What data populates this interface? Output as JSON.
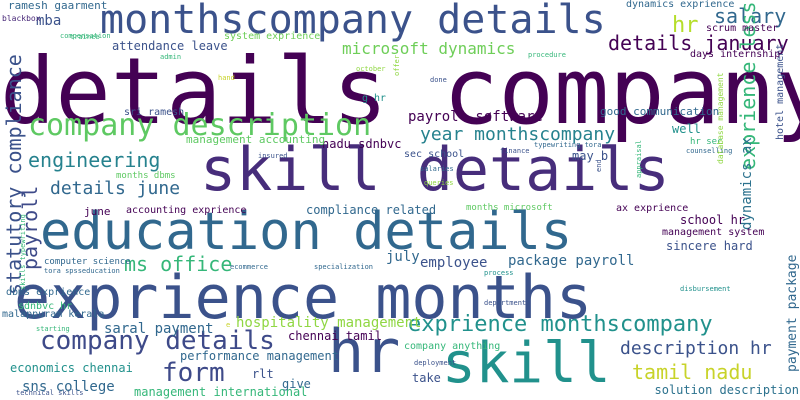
{
  "palette": {
    "dark_purple": "#440154",
    "indigo": "#3b528b",
    "slate": "#31688e",
    "teal": "#21918c",
    "green": "#35b779",
    "lime": "#90d743",
    "yellow": "#c8d32a"
  },
  "words": [
    {
      "text": "details company",
      "color": "#440154"
    },
    {
      "text": "exprience months",
      "color": "#3b528b"
    },
    {
      "text": "education details",
      "color": "#31688e"
    },
    {
      "text": "skill details",
      "color": "#472d7b"
    },
    {
      "text": "hr",
      "color": "#3b528b"
    },
    {
      "text": "skill",
      "color": "#21918c"
    },
    {
      "text": "monthscompany details",
      "color": "#3b528b"
    },
    {
      "text": "company description",
      "color": "#5ec962"
    },
    {
      "text": "company details",
      "color": "#3e4a89"
    },
    {
      "text": "exprience monthscompany",
      "color": "#21918c"
    },
    {
      "text": "details january",
      "color": "#440154"
    },
    {
      "text": "salary",
      "color": "#31688e"
    },
    {
      "text": "hr",
      "color": "#b5de2b"
    },
    {
      "text": "engineering",
      "color": "#26828e"
    },
    {
      "text": "form",
      "color": "#3e4a89"
    },
    {
      "text": "ms office",
      "color": "#35b779"
    },
    {
      "text": "tamil nadu",
      "color": "#c8d32a"
    },
    {
      "text": "description hr",
      "color": "#3b528b"
    },
    {
      "text": "year monthscompany",
      "color": "#26828e"
    },
    {
      "text": "microsoft dynamics",
      "color": "#6ece58"
    },
    {
      "text": "details june",
      "color": "#31688e"
    },
    {
      "text": "exprience less",
      "color": "#35b779"
    },
    {
      "text": "statutory compliance",
      "color": "#3b528b"
    },
    {
      "text": "payroll",
      "color": "#3e4a89"
    },
    {
      "text": "payment package",
      "color": "#31688e"
    },
    {
      "text": "dynamics ax",
      "color": "#2c728e"
    },
    {
      "text": "hospitality management",
      "color": "#90d743"
    },
    {
      "text": "payroll software",
      "color": "#440154"
    },
    {
      "text": "package payroll",
      "color": "#31688e"
    },
    {
      "text": "performance management",
      "color": "#31688e"
    },
    {
      "text": "attendance leave",
      "color": "#3b528b"
    },
    {
      "text": "compliance related",
      "color": "#31688e"
    },
    {
      "text": "saral payment",
      "color": "#31688e"
    },
    {
      "text": "chennai tamil",
      "color": "#440154"
    },
    {
      "text": "economics chennai",
      "color": "#21918c"
    },
    {
      "text": "sns college",
      "color": "#31688e"
    },
    {
      "text": "management international",
      "color": "#35b779"
    },
    {
      "text": "solution description",
      "color": "#2c728e"
    },
    {
      "text": "school hr",
      "color": "#440154"
    },
    {
      "text": "sincere hard",
      "color": "#3b528b"
    },
    {
      "text": "employee",
      "color": "#3b528b"
    },
    {
      "text": "july",
      "color": "#31688e"
    },
    {
      "text": "nadu sdnbvc",
      "color": "#440154"
    },
    {
      "text": "management accounting",
      "color": "#5ec962"
    },
    {
      "text": "good communication",
      "color": "#31688e"
    },
    {
      "text": "mba",
      "color": "#3b528b"
    },
    {
      "text": "ramesh gaarment",
      "color": "#31688e"
    },
    {
      "text": "blackbox",
      "color": "#482878"
    },
    {
      "text": "system exprience",
      "color": "#6ece58"
    },
    {
      "text": "dynamics exprience",
      "color": "#31688e"
    },
    {
      "text": "scrum master",
      "color": "#440154"
    },
    {
      "text": "sri ramesh",
      "color": "#3b528b"
    },
    {
      "text": "well",
      "color": "#21918c"
    },
    {
      "text": "may b",
      "color": "#3b528b"
    },
    {
      "text": "sec school",
      "color": "#3b528b"
    },
    {
      "text": "june",
      "color": "#440154"
    },
    {
      "text": "accounting exprience",
      "color": "#440154"
    },
    {
      "text": "ax exprience",
      "color": "#440154"
    },
    {
      "text": "management system",
      "color": "#440154"
    },
    {
      "text": "computer science",
      "color": "#31688e"
    },
    {
      "text": "dbms exprience",
      "color": "#31688e"
    },
    {
      "text": "sdnbvc hr",
      "color": "#35b779"
    },
    {
      "text": "malappuram kerala",
      "color": "#31688e"
    },
    {
      "text": "company anything",
      "color": "#35b779"
    },
    {
      "text": "rlt",
      "color": "#3b528b"
    },
    {
      "text": "give",
      "color": "#31688e"
    },
    {
      "text": "take",
      "color": "#3b528b"
    },
    {
      "text": "months microsoft",
      "color": "#5ec962"
    },
    {
      "text": "hotel management",
      "color": "#3b528b"
    },
    {
      "text": "days internship",
      "color": "#440154"
    },
    {
      "text": "months dbms",
      "color": "#5ec962"
    },
    {
      "text": "g hr",
      "color": "#21918c"
    },
    {
      "text": "compensation",
      "color": "#35b779"
    },
    {
      "text": "admin",
      "color": "#35b779"
    },
    {
      "text": "october",
      "color": "#90d743"
    },
    {
      "text": "offer",
      "color": "#90d743"
    },
    {
      "text": "procedure",
      "color": "#35b779"
    },
    {
      "text": "hand",
      "color": "#c8d32a"
    },
    {
      "text": "done",
      "color": "#3b528b"
    },
    {
      "text": "insured",
      "color": "#3b528b"
    },
    {
      "text": "salaries",
      "color": "#31688e"
    },
    {
      "text": "queries",
      "color": "#90d743"
    },
    {
      "text": "finance",
      "color": "#3b528b"
    },
    {
      "text": "typewriting tora",
      "color": "#31688e"
    },
    {
      "text": "counselling",
      "color": "#31688e"
    },
    {
      "text": "hr sec",
      "color": "#35b779"
    },
    {
      "text": "database management",
      "color": "#90d743"
    },
    {
      "text": "appraisal",
      "color": "#35b779"
    },
    {
      "text": "end",
      "color": "#3b528b"
    },
    {
      "text": "tora spsseducation",
      "color": "#31688e"
    },
    {
      "text": "skills typewriting",
      "color": "#35b779"
    },
    {
      "text": "ecommerce",
      "color": "#31688e"
    },
    {
      "text": "specialization",
      "color": "#31688e"
    },
    {
      "text": "process",
      "color": "#21918c"
    },
    {
      "text": "disbursement",
      "color": "#21918c"
    },
    {
      "text": "department",
      "color": "#3b528b"
    },
    {
      "text": "deployment",
      "color": "#3b528b"
    },
    {
      "text": "starting",
      "color": "#35b779"
    },
    {
      "text": "trainee",
      "color": "#35b779"
    },
    {
      "text": "technical skills",
      "color": "#3b528b"
    },
    {
      "text": "e",
      "color": "#c8d32a"
    }
  ]
}
